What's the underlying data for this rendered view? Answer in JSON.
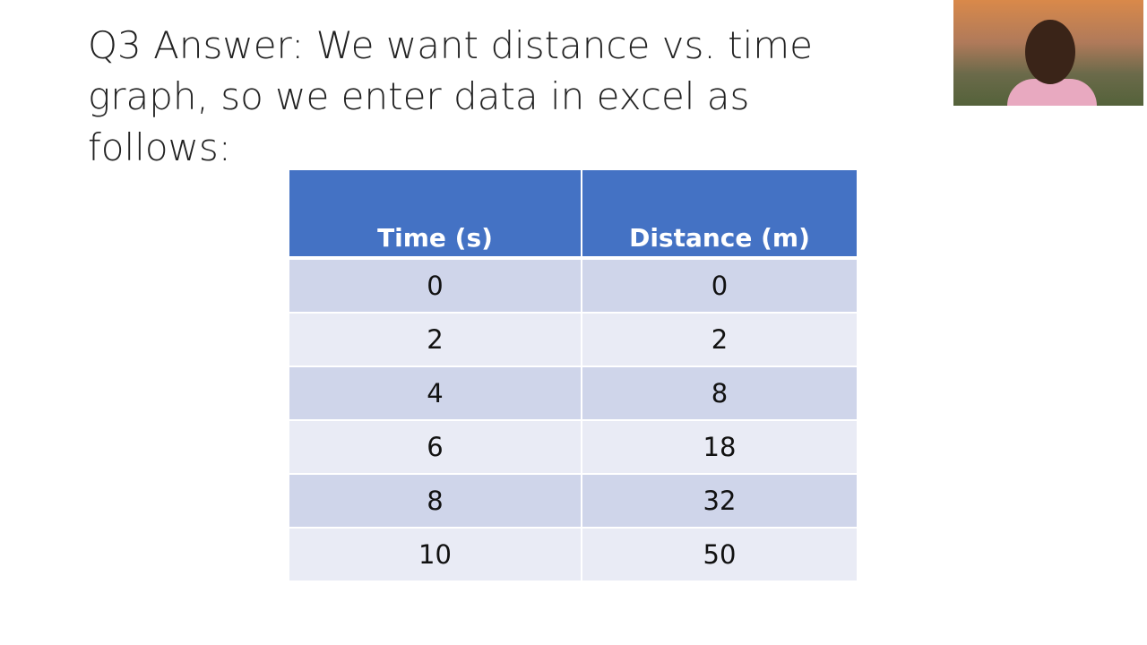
{
  "slide": {
    "title": "Q3 Answer: We want distance vs. time graph, so we enter data in excel as follows:",
    "table": {
      "header": [
        "Time (s)",
        "Distance (m)"
      ],
      "rows": [
        [
          "0",
          "0"
        ],
        [
          "2",
          "2"
        ],
        [
          "4",
          "8"
        ],
        [
          "6",
          "18"
        ],
        [
          "8",
          "32"
        ],
        [
          "10",
          "50"
        ]
      ]
    }
  }
}
